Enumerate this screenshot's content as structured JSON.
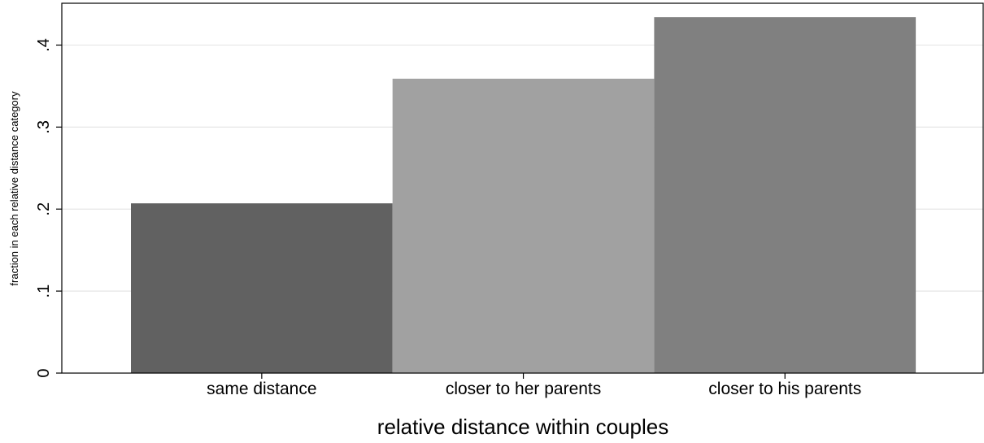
{
  "chart_data": {
    "type": "bar",
    "categories": [
      "same distance",
      "closer to her parents",
      "closer to his parents"
    ],
    "values": [
      0.207,
      0.359,
      0.434
    ],
    "bar_colors": [
      "#616161",
      "#a1a1a1",
      "#808080"
    ],
    "xlabel": "relative distance within couples",
    "ylabel": "fraction in each relative distance category",
    "ylim": [
      0,
      0.451
    ],
    "yticks": [
      0,
      0.1,
      0.2,
      0.3,
      0.4
    ],
    "ytick_labels": [
      "0",
      ".1",
      ".2",
      ".3",
      ".4"
    ],
    "grid": true,
    "legend": "none"
  }
}
